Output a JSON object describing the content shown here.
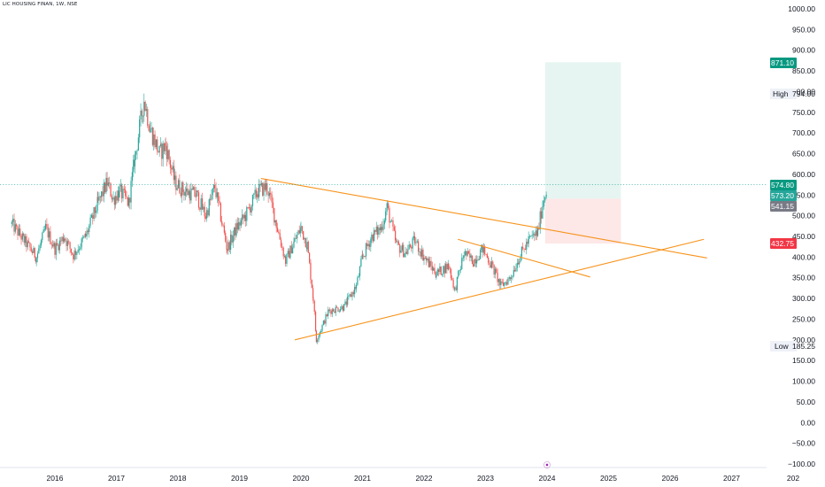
{
  "chart_data": {
    "type": "candlestick",
    "title": "LIC HOUSING FINAN, 1W, NSE",
    "x_ticks": [
      "2016",
      "2017",
      "2018",
      "2019",
      "2020",
      "2021",
      "2022",
      "2023",
      "2024",
      "2025",
      "2026",
      "2027",
      "202"
    ],
    "y_ticks": [
      "1000.00",
      "950.00",
      "900.00",
      "850.00",
      "800.00",
      "750.00",
      "700.00",
      "650.00",
      "600.00",
      "550.00",
      "500.00",
      "450.00",
      "400.00",
      "350.00",
      "300.00",
      "250.00",
      "200.00",
      "150.00",
      "100.00",
      "50.00",
      "0.00",
      "−50.00",
      "−100.00"
    ],
    "ylim": [
      -100,
      1000
    ],
    "colors": {
      "up": "#26a69a",
      "down": "#ef5350",
      "trendline": "#f7931a",
      "profit_zone": "#e3f4ef",
      "loss_zone": "#fde4e4"
    },
    "price_path": [
      {
        "x": 2015.3,
        "y": 480
      },
      {
        "x": 2015.5,
        "y": 440
      },
      {
        "x": 2015.7,
        "y": 400
      },
      {
        "x": 2015.85,
        "y": 470
      },
      {
        "x": 2016.0,
        "y": 420
      },
      {
        "x": 2016.15,
        "y": 450
      },
      {
        "x": 2016.3,
        "y": 405
      },
      {
        "x": 2016.5,
        "y": 450
      },
      {
        "x": 2016.7,
        "y": 530
      },
      {
        "x": 2016.85,
        "y": 580
      },
      {
        "x": 2016.95,
        "y": 540
      },
      {
        "x": 2017.05,
        "y": 560
      },
      {
        "x": 2017.2,
        "y": 530
      },
      {
        "x": 2017.3,
        "y": 640
      },
      {
        "x": 2017.45,
        "y": 780
      },
      {
        "x": 2017.55,
        "y": 710
      },
      {
        "x": 2017.7,
        "y": 650
      },
      {
        "x": 2017.8,
        "y": 670
      },
      {
        "x": 2017.95,
        "y": 580
      },
      {
        "x": 2018.1,
        "y": 560
      },
      {
        "x": 2018.3,
        "y": 550
      },
      {
        "x": 2018.45,
        "y": 500
      },
      {
        "x": 2018.6,
        "y": 570
      },
      {
        "x": 2018.8,
        "y": 420
      },
      {
        "x": 2018.95,
        "y": 470
      },
      {
        "x": 2019.1,
        "y": 500
      },
      {
        "x": 2019.3,
        "y": 560
      },
      {
        "x": 2019.45,
        "y": 570
      },
      {
        "x": 2019.6,
        "y": 480
      },
      {
        "x": 2019.75,
        "y": 390
      },
      {
        "x": 2019.9,
        "y": 440
      },
      {
        "x": 2020.0,
        "y": 470
      },
      {
        "x": 2020.1,
        "y": 430
      },
      {
        "x": 2020.2,
        "y": 300
      },
      {
        "x": 2020.25,
        "y": 200
      },
      {
        "x": 2020.45,
        "y": 270
      },
      {
        "x": 2020.7,
        "y": 280
      },
      {
        "x": 2020.9,
        "y": 330
      },
      {
        "x": 2021.0,
        "y": 400
      },
      {
        "x": 2021.15,
        "y": 450
      },
      {
        "x": 2021.3,
        "y": 470
      },
      {
        "x": 2021.4,
        "y": 520
      },
      {
        "x": 2021.55,
        "y": 430
      },
      {
        "x": 2021.7,
        "y": 410
      },
      {
        "x": 2021.85,
        "y": 440
      },
      {
        "x": 2022.0,
        "y": 400
      },
      {
        "x": 2022.2,
        "y": 360
      },
      {
        "x": 2022.4,
        "y": 380
      },
      {
        "x": 2022.5,
        "y": 320
      },
      {
        "x": 2022.65,
        "y": 410
      },
      {
        "x": 2022.8,
        "y": 390
      },
      {
        "x": 2022.95,
        "y": 420
      },
      {
        "x": 2023.1,
        "y": 380
      },
      {
        "x": 2023.25,
        "y": 330
      },
      {
        "x": 2023.4,
        "y": 350
      },
      {
        "x": 2023.55,
        "y": 400
      },
      {
        "x": 2023.7,
        "y": 440
      },
      {
        "x": 2023.85,
        "y": 460
      },
      {
        "x": 2023.93,
        "y": 530
      },
      {
        "x": 2024.0,
        "y": 574.8
      }
    ],
    "trendlines": [
      {
        "x1": 2019.35,
        "y1": 590,
        "x2": 2026.6,
        "y2": 398
      },
      {
        "x1": 2019.9,
        "y1": 200,
        "x2": 2026.55,
        "y2": 443
      },
      {
        "x1": 2022.55,
        "y1": 443,
        "x2": 2024.7,
        "y2": 352
      }
    ],
    "position": {
      "x_start": 2023.97,
      "x_end": 2025.2,
      "entry": 541.15,
      "target": 871.1,
      "stop": 432.75
    },
    "current_price": 574.8,
    "price_badges": [
      {
        "value": "871.10",
        "bg": "#089981",
        "fg": "#ffffff"
      },
      {
        "value": "574.80",
        "bg": "#089981",
        "fg": "#ffffff"
      },
      {
        "value": "573.20",
        "bg": "#26a69a",
        "fg": "#ffffff"
      },
      {
        "value": "541.15",
        "bg": "#787b86",
        "fg": "#ffffff"
      },
      {
        "value": "432.75",
        "bg": "#f23645",
        "fg": "#ffffff"
      }
    ],
    "high": {
      "label": "High",
      "value": "794.00"
    },
    "low": {
      "label": "Low",
      "value": "185.25"
    },
    "event_marker": {
      "x": 2024.0,
      "symbol": "⦿"
    }
  }
}
